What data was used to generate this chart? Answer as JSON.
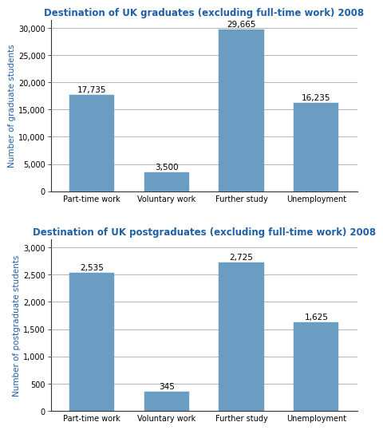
{
  "grad_title": "Destination of UK graduates (excluding full-time work) 2008",
  "postgrad_title": "Destination of UK postgraduates (excluding full-time work) 2008",
  "categories": [
    "Part-time work",
    "Voluntary work",
    "Further study",
    "Unemployment"
  ],
  "grad_values": [
    17735,
    3500,
    29665,
    16235
  ],
  "postgrad_values": [
    2535,
    345,
    2725,
    1625
  ],
  "grad_labels": [
    "17,735",
    "3,500",
    "29,665",
    "16,235"
  ],
  "postgrad_labels": [
    "2,535",
    "345",
    "2,725",
    "1,625"
  ],
  "grad_yticks": [
    0,
    5000,
    10000,
    15000,
    20000,
    25000,
    30000
  ],
  "postgrad_yticks": [
    0,
    500,
    1000,
    1500,
    2000,
    2500,
    3000
  ],
  "grad_ylim": [
    0,
    31500
  ],
  "postgrad_ylim": [
    0,
    3150
  ],
  "bar_color": "#6b9dc2",
  "title_color": "#1f5fa6",
  "ylabel_color": "#1f5fa6",
  "ylabel_grad": "Number of graduate students",
  "ylabel_postgrad": "Number of postgraduate students",
  "title_fontsize": 8.5,
  "label_fontsize": 7.5,
  "tick_fontsize": 7.0,
  "ylabel_fontsize": 7.5,
  "background_color": "#ffffff",
  "fig_background": "#ffffff",
  "grid_color": "#aaaaaa",
  "spine_color": "#333333"
}
